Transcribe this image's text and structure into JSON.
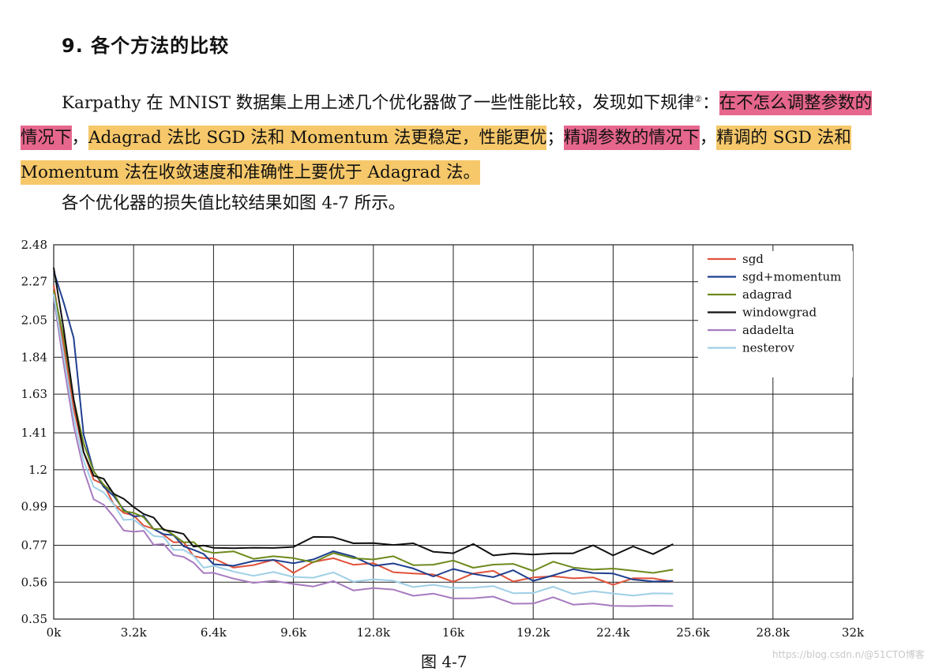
{
  "heading": "9. 各个方法的比较",
  "paragraph": {
    "p1": "Karpathy 在 MNIST 数据集上用上述几个优化器做了一些性能比较，发现如下规律",
    "footnote": "②",
    "colon": "：",
    "h1": "在不怎么调整参数的情况下",
    "sep1": "，",
    "h2": "Adagrad 法比 SGD 法和 Momentum 法更稳定，性能更优",
    "sep2": "；",
    "h3": "精调参数的情况下",
    "sep3": "，",
    "h4": "精调的 SGD 法和 Momentum 法在收敛速度和准确性上要优于 Adagrad 法。"
  },
  "line2": "各个优化器的损失值比较结果如图 4-7 所示。",
  "caption": "图 4-7",
  "watermark": "https://blog.csdn.n/@51CTO博客",
  "colors": {
    "highlight_pink": "#e6668d",
    "highlight_yellow": "#f6c86a"
  },
  "chart_data": {
    "type": "line",
    "xlim": [
      0,
      32000
    ],
    "ylim": [
      0.35,
      2.48
    ],
    "x_ticks": [
      0,
      3200,
      6400,
      9600,
      12800,
      16000,
      19200,
      22400,
      25600,
      28800,
      32000
    ],
    "x_tick_labels": [
      "0k",
      "3.2k",
      "6.4k",
      "9.6k",
      "12.8k",
      "16k",
      "19.2k",
      "22.4k",
      "25.6k",
      "28.8k",
      "32k"
    ],
    "y_ticks": [
      0.35,
      0.56,
      0.77,
      0.99,
      1.2,
      1.41,
      1.63,
      1.84,
      2.05,
      2.27,
      2.48
    ],
    "y_tick_labels": [
      "0.35",
      "0.56",
      "0.77",
      "0.99",
      "1.2",
      "1.41",
      "1.63",
      "1.84",
      "2.05",
      "2.27",
      "2.48"
    ],
    "grid": true,
    "legend_position": "top-right",
    "x": [
      0,
      400,
      800,
      1200,
      1600,
      2000,
      2400,
      2800,
      3200,
      3600,
      4000,
      4400,
      4800,
      5200,
      5600,
      6000,
      6400,
      7200,
      8000,
      8800,
      9600,
      10400,
      11200,
      12000,
      12800,
      13600,
      14400,
      15200,
      16000,
      16800,
      17600,
      18400,
      19200,
      20000,
      20800,
      21600,
      22400,
      23200,
      24000,
      24800
    ],
    "series": [
      {
        "name": "sgd",
        "color": "#e0523a",
        "values": [
          2.25,
          1.9,
          1.55,
          1.3,
          1.15,
          1.1,
          1.02,
          0.95,
          0.93,
          0.9,
          0.85,
          0.83,
          0.8,
          0.77,
          0.72,
          0.7,
          0.68,
          0.66,
          0.65,
          0.68,
          0.63,
          0.66,
          0.7,
          0.67,
          0.65,
          0.63,
          0.61,
          0.59,
          0.58,
          0.6,
          0.62,
          0.58,
          0.57,
          0.6,
          0.59,
          0.57,
          0.56,
          0.58,
          0.57,
          0.58
        ]
      },
      {
        "name": "sgd+momentum",
        "color": "#1f3f8f",
        "values": [
          2.33,
          2.15,
          1.95,
          1.4,
          1.18,
          1.12,
          1.04,
          0.97,
          0.95,
          0.92,
          0.87,
          0.84,
          0.81,
          0.78,
          0.74,
          0.71,
          0.68,
          0.64,
          0.68,
          0.7,
          0.65,
          0.7,
          0.74,
          0.69,
          0.67,
          0.66,
          0.63,
          0.61,
          0.62,
          0.61,
          0.6,
          0.61,
          0.58,
          0.6,
          0.62,
          0.63,
          0.6,
          0.57,
          0.58,
          0.55
        ]
      },
      {
        "name": "adagrad",
        "color": "#6e8a1c",
        "values": [
          2.22,
          1.95,
          1.6,
          1.35,
          1.2,
          1.12,
          1.05,
          0.98,
          0.95,
          0.92,
          0.88,
          0.85,
          0.83,
          0.8,
          0.77,
          0.75,
          0.73,
          0.72,
          0.71,
          0.7,
          0.69,
          0.69,
          0.71,
          0.7,
          0.7,
          0.69,
          0.67,
          0.66,
          0.67,
          0.66,
          0.65,
          0.66,
          0.64,
          0.66,
          0.65,
          0.64,
          0.62,
          0.64,
          0.61,
          0.62
        ]
      },
      {
        "name": "windowgrad",
        "color": "#111111",
        "values": [
          2.35,
          2.0,
          1.6,
          1.3,
          1.16,
          1.14,
          1.08,
          1.02,
          0.99,
          0.96,
          0.91,
          0.87,
          0.85,
          0.82,
          0.78,
          0.76,
          0.75,
          0.77,
          0.74,
          0.76,
          0.77,
          0.8,
          0.83,
          0.78,
          0.77,
          0.79,
          0.77,
          0.73,
          0.74,
          0.76,
          0.72,
          0.73,
          0.7,
          0.74,
          0.72,
          0.76,
          0.73,
          0.75,
          0.72,
          0.79
        ]
      },
      {
        "name": "adadelta",
        "color": "#a77bbf",
        "values": [
          2.18,
          1.8,
          1.45,
          1.2,
          1.05,
          0.99,
          0.93,
          0.87,
          0.83,
          0.86,
          0.78,
          0.76,
          0.73,
          0.7,
          0.66,
          0.63,
          0.6,
          0.58,
          0.57,
          0.55,
          0.56,
          0.54,
          0.55,
          0.53,
          0.52,
          0.51,
          0.5,
          0.48,
          0.47,
          0.48,
          0.46,
          0.45,
          0.44,
          0.46,
          0.45,
          0.43,
          0.42,
          0.44,
          0.41,
          0.43
        ]
      },
      {
        "name": "nesterov",
        "color": "#9fcfe6",
        "values": [
          2.2,
          1.85,
          1.5,
          1.25,
          1.12,
          1.06,
          1.0,
          0.93,
          0.9,
          0.88,
          0.83,
          0.8,
          0.76,
          0.74,
          0.7,
          0.66,
          0.64,
          0.62,
          0.61,
          0.6,
          0.6,
          0.59,
          0.6,
          0.58,
          0.57,
          0.56,
          0.55,
          0.53,
          0.53,
          0.54,
          0.52,
          0.51,
          0.5,
          0.52,
          0.51,
          0.5,
          0.49,
          0.5,
          0.48,
          0.5
        ]
      }
    ]
  }
}
